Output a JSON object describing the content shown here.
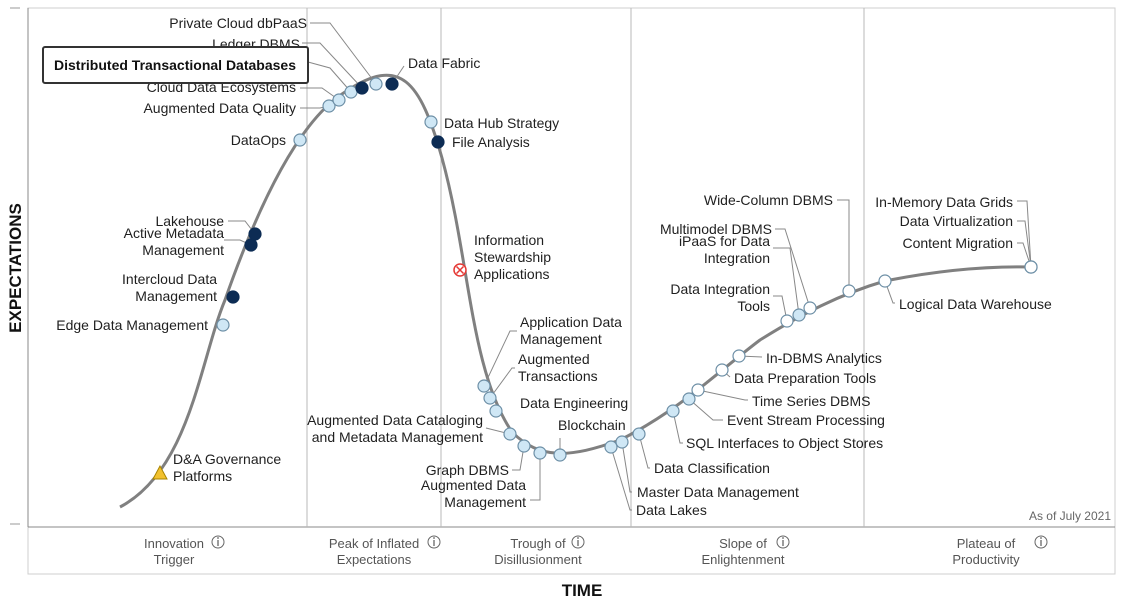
{
  "chart_data": {
    "type": "hype_cycle",
    "x_axis_title": "TIME",
    "y_axis_title": "EXPECTATIONS",
    "note": "As of July 2021",
    "highlight_label": "Distributed Transactional Databases",
    "info_icon_name": "info-icon",
    "phases": [
      {
        "name": "Innovation",
        "name2": "Trigger"
      },
      {
        "name": "Peak of Inflated",
        "name2": "Expectations"
      },
      {
        "name": "Trough of",
        "name2": "Disillusionment"
      },
      {
        "name": "Slope of",
        "name2": "Enlightenment"
      },
      {
        "name": "Plateau of",
        "name2": "Productivity"
      }
    ],
    "marker_legend": {
      "light-circle": "#cfe7f5",
      "dark-circle": "#0d2c54",
      "white-circle": "#ffffff",
      "x-circle": "#e53935",
      "triangle": "#f2c12e"
    },
    "items": [
      {
        "label": "D&A Governance|Platforms",
        "marker": "triangle"
      },
      {
        "label": "Edge Data Management",
        "marker": "light-circle"
      },
      {
        "label": "Intercloud Data|Management",
        "marker": "dark-circle"
      },
      {
        "label": "Active Metadata|Management",
        "marker": "dark-circle"
      },
      {
        "label": "Lakehouse",
        "marker": "dark-circle"
      },
      {
        "label": "DataOps",
        "marker": "light-circle"
      },
      {
        "label": "Augmented Data Quality",
        "marker": "light-circle"
      },
      {
        "label": "Cloud Data Ecosystems",
        "marker": "light-circle"
      },
      {
        "label": "Distributed Transactional Databases",
        "marker": "light-circle"
      },
      {
        "label": "Ledger DBMS",
        "marker": "dark-circle"
      },
      {
        "label": "Private Cloud dbPaaS",
        "marker": "light-circle"
      },
      {
        "label": "Data Fabric",
        "marker": "dark-circle"
      },
      {
        "label": "Data Hub Strategy",
        "marker": "light-circle"
      },
      {
        "label": "File Analysis",
        "marker": "dark-circle"
      },
      {
        "label": "Information|Stewardship|Applications",
        "marker": "x-circle"
      },
      {
        "label": "Application Data|Management",
        "marker": "light-circle"
      },
      {
        "label": "Augmented|Transactions",
        "marker": "light-circle"
      },
      {
        "label": "Data Engineering",
        "marker": "light-circle"
      },
      {
        "label": "Augmented Data Cataloging|and Metadata Management",
        "marker": "light-circle"
      },
      {
        "label": "Graph DBMS",
        "marker": "light-circle"
      },
      {
        "label": "Augmented Data|Management",
        "marker": "light-circle"
      },
      {
        "label": "Blockchain",
        "marker": "light-circle"
      },
      {
        "label": "Data Lakes",
        "marker": "light-circle"
      },
      {
        "label": "Master Data Management",
        "marker": "light-circle"
      },
      {
        "label": "Data Classification",
        "marker": "light-circle"
      },
      {
        "label": "SQL Interfaces to Object Stores",
        "marker": "light-circle"
      },
      {
        "label": "Event Stream Processing",
        "marker": "light-circle"
      },
      {
        "label": "Time Series DBMS",
        "marker": "white-circle"
      },
      {
        "label": "Data Preparation Tools",
        "marker": "white-circle"
      },
      {
        "label": "In-DBMS Analytics",
        "marker": "white-circle"
      },
      {
        "label": "Data Integration|Tools",
        "marker": "white-circle"
      },
      {
        "label": "iPaaS for Data|Integration",
        "marker": "light-circle"
      },
      {
        "label": "Multimodel DBMS",
        "marker": "white-circle"
      },
      {
        "label": "Wide-Column DBMS",
        "marker": "white-circle"
      },
      {
        "label": "Logical Data Warehouse",
        "marker": "white-circle"
      },
      {
        "label": "In-Memory Data Grids",
        "marker": "white-circle"
      },
      {
        "label": "Data Virtualization",
        "marker": "white-circle"
      },
      {
        "label": "Content Migration",
        "marker": "white-circle"
      }
    ]
  }
}
